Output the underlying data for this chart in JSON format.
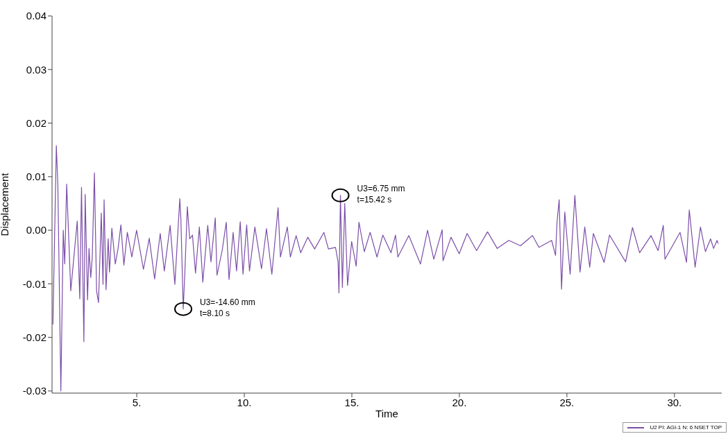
{
  "chart_data": {
    "type": "line",
    "xlabel": "Time",
    "ylabel": "Displacement",
    "xlim": [
      1.06,
      32.2
    ],
    "xticks": [
      {
        "value": 5,
        "label": "5."
      },
      {
        "value": 10,
        "label": "10."
      },
      {
        "value": 15,
        "label": "15."
      },
      {
        "value": 20,
        "label": "20."
      },
      {
        "value": 25,
        "label": "25."
      },
      {
        "value": 30,
        "label": "30."
      }
    ],
    "ylim": [
      -0.0304,
      0.04
    ],
    "yticks": [
      {
        "value": -0.03,
        "label": "-0.03"
      },
      {
        "value": -0.02,
        "label": "-0.02"
      },
      {
        "value": -0.01,
        "label": "-0.01"
      },
      {
        "value": 0,
        "label": "0.00"
      },
      {
        "value": 0.01,
        "label": "0.01"
      },
      {
        "value": 0.02,
        "label": "0.02"
      },
      {
        "value": 0.03,
        "label": "0.03"
      },
      {
        "value": 0.04,
        "label": "0.04"
      }
    ],
    "grid": false,
    "legend": "bottom right",
    "marker": "none",
    "line_style": "solid",
    "annotations": [
      {
        "text": "U3=-14.60 mm\nt=8.10 s",
        "x": 7.16,
        "y": -0.0147
      },
      {
        "text": "U3=6.75 mm\nt=15.42 s",
        "x": 14.47,
        "y": 0.0065
      }
    ],
    "series": [
      {
        "name": "U2 PI: AGI-1 N: 6 NSET TOP",
        "color": "#7b4ea8",
        "x": [
          1.1,
          1.26,
          1.33,
          1.47,
          1.58,
          1.65,
          1.74,
          1.93,
          2.23,
          2.35,
          2.43,
          2.54,
          2.6,
          2.71,
          2.78,
          2.86,
          2.93,
          3.03,
          3.13,
          3.22,
          3.35,
          3.43,
          3.48,
          3.57,
          3.67,
          3.73,
          3.84,
          4.0,
          4.13,
          4.26,
          4.4,
          4.56,
          4.77,
          4.99,
          5.31,
          5.58,
          5.83,
          6.09,
          6.28,
          6.55,
          6.77,
          7.0,
          7.05,
          7.16,
          7.23,
          7.35,
          7.46,
          7.59,
          7.73,
          7.91,
          8.07,
          8.3,
          8.45,
          8.65,
          8.73,
          8.97,
          9.16,
          9.29,
          9.48,
          9.64,
          9.81,
          9.94,
          10.11,
          10.24,
          10.49,
          10.8,
          11.03,
          11.28,
          11.57,
          11.68,
          12.0,
          12.14,
          12.41,
          12.62,
          12.95,
          13.27,
          13.7,
          13.91,
          14.24,
          14.36,
          14.4,
          14.47,
          14.56,
          14.67,
          14.8,
          14.99,
          15.2,
          15.33,
          15.58,
          15.85,
          16.17,
          16.44,
          16.82,
          17.03,
          17.14,
          17.65,
          18.19,
          18.52,
          18.81,
          19.2,
          19.24,
          19.61,
          19.99,
          20.36,
          20.8,
          21.31,
          21.76,
          22.3,
          22.84,
          23.4,
          23.7,
          24.29,
          24.47,
          24.54,
          24.64,
          24.75,
          24.9,
          25.15,
          25.37,
          25.61,
          25.83,
          26.06,
          26.23,
          26.73,
          26.98,
          27.73,
          28.05,
          28.38,
          28.91,
          29.24,
          29.48,
          29.56,
          30.26,
          30.56,
          30.69,
          30.96,
          31.21,
          31.44,
          31.68,
          31.82,
          31.98,
          32.03
        ],
        "values": [
          -0.0176,
          0.0158,
          0.0084,
          -0.03,
          0,
          -0.0063,
          0.0086,
          -0.0113,
          0.0017,
          -0.0128,
          0.008,
          -0.0208,
          0.0067,
          -0.013,
          -0.0034,
          -0.0088,
          -0.005,
          0.0107,
          -0.0113,
          -0.0135,
          0.0032,
          -0.0101,
          0.0057,
          -0.0111,
          -0.0016,
          -0.0078,
          0.0004,
          -0.0063,
          -0.0034,
          0.001,
          -0.0065,
          -0.0004,
          -0.005,
          0,
          -0.0073,
          -0.0015,
          -0.0091,
          -0.0006,
          -0.0076,
          0.0009,
          -0.0101,
          0.0059,
          0.0021,
          -0.0147,
          -0.0084,
          0.0044,
          -0.0016,
          -0.0009,
          -0.008,
          0.0006,
          -0.0097,
          0.0009,
          -0.0059,
          0.0023,
          -0.0084,
          -0.0038,
          0.0015,
          -0.0092,
          -0.0004,
          -0.0076,
          0.0016,
          -0.0082,
          0.001,
          -0.0076,
          0.0006,
          -0.0072,
          0.0003,
          -0.0082,
          0.0042,
          -0.005,
          0.0006,
          -0.005,
          -0.001,
          -0.0042,
          -0.0013,
          -0.0035,
          -0.0004,
          -0.0035,
          -0.0032,
          -0.0059,
          -0.0117,
          0.0065,
          -0.0107,
          0.005,
          -0.0103,
          -0.0021,
          -0.0067,
          0.0015,
          -0.004,
          -0.0004,
          -0.005,
          -0.0009,
          -0.0042,
          -0.0009,
          -0.005,
          -0.001,
          -0.0063,
          0,
          -0.0054,
          0.0001,
          -0.0057,
          -0.0013,
          -0.0044,
          -0.0006,
          -0.0038,
          -0.0003,
          -0.0034,
          -0.0019,
          -0.0029,
          -0.001,
          -0.0032,
          -0.0019,
          -0.0047,
          0.0015,
          0.0057,
          -0.011,
          0.0034,
          -0.0082,
          0.0065,
          -0.0078,
          0.0006,
          -0.0069,
          -0.0006,
          -0.006,
          -0.0009,
          -0.0059,
          0.0005,
          -0.0042,
          -0.001,
          -0.0038,
          0.0009,
          -0.0054,
          -0.0004,
          -0.006,
          0.0038,
          -0.0069,
          0.0006,
          -0.004,
          -0.0016,
          -0.0034,
          -0.0019,
          -0.0025
        ]
      }
    ]
  }
}
